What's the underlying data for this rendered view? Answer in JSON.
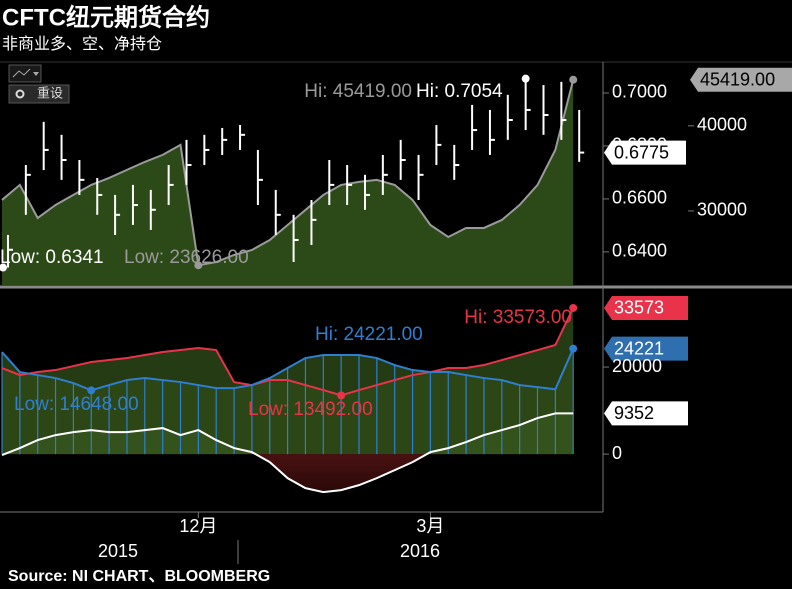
{
  "header": {
    "title": "CFTC纽元期货合约",
    "subtitle": "非商业多、空、净持仓"
  },
  "toolbar": {
    "reset": "重设"
  },
  "chart_data": [
    {
      "type": "ohlc",
      "ylim": [
        0.6275,
        0.7117
      ],
      "yticks": [
        {
          "value": 0.64,
          "label": "0.6400"
        },
        {
          "value": 0.66,
          "label": "0.6600"
        },
        {
          "value": 0.68,
          "label": "0.6800"
        },
        {
          "value": 0.7,
          "label": "0.7000"
        }
      ],
      "y2lim": [
        21300,
        47500
      ],
      "y2ticks": [
        30000,
        40000
      ],
      "series": [
        {
          "color": "#ffffff",
          "hi_label": "Hi: 0.7054",
          "low_label": "Low: 0.6341",
          "high": [
            0.6464,
            0.6728,
            0.6891,
            0.6842,
            0.6747,
            0.6679,
            0.6615,
            0.6653,
            0.6634,
            0.6728,
            0.6823,
            0.6842,
            0.6868,
            0.6879,
            0.6785,
            0.6634,
            0.654,
            0.6596,
            0.6747,
            0.6728,
            0.6691,
            0.6766,
            0.6823,
            0.6766,
            0.6879,
            0.6804,
            0.6955,
            0.6936,
            0.6993,
            0.7054,
            0.703,
            0.7042,
            0.6936
          ],
          "low": [
            0.6341,
            0.654,
            0.6709,
            0.6672,
            0.6615,
            0.654,
            0.6464,
            0.6502,
            0.6483,
            0.6577,
            0.6653,
            0.6728,
            0.6766,
            0.6785,
            0.6577,
            0.6464,
            0.6362,
            0.6426,
            0.6577,
            0.6577,
            0.6559,
            0.6615,
            0.6672,
            0.6596,
            0.6728,
            0.6672,
            0.6785,
            0.6766,
            0.6823,
            0.686,
            0.6842,
            0.6823,
            0.674
          ],
          "close": [
            0.6408,
            0.6691,
            0.6785,
            0.6747,
            0.6672,
            0.6615,
            0.654,
            0.6577,
            0.6559,
            0.6653,
            0.6728,
            0.6785,
            0.6823,
            0.6842,
            0.6672,
            0.654,
            0.6445,
            0.6521,
            0.6653,
            0.6653,
            0.6615,
            0.6691,
            0.6747,
            0.6691,
            0.6804,
            0.6728,
            0.686,
            0.6823,
            0.6898,
            0.6936,
            0.6917,
            0.6898,
            0.6775
          ]
        },
        {
          "color": "#9a9a9a",
          "fill": "#2b4a17",
          "axis": "y2",
          "hi_label": "Hi: 45419.00",
          "low_label": "Low: 23626.00",
          "last_label": "45419.00",
          "values": [
            31294,
            33059,
            29176,
            30706,
            31882,
            33059,
            33882,
            34824,
            35765,
            36588,
            37765,
            23626,
            24000,
            24824,
            25412,
            26588,
            28353,
            30118,
            31882,
            33059,
            33412,
            33647,
            33059,
            31294,
            28353,
            26941,
            28000,
            28000,
            28941,
            30706,
            33059,
            37176,
            45419
          ]
        }
      ]
    },
    {
      "type": "line",
      "categories": [
        null,
        null,
        null,
        null,
        null,
        null,
        null,
        null,
        null,
        null,
        null,
        "12月",
        null,
        null,
        null,
        null,
        null,
        null,
        null,
        null,
        null,
        null,
        null,
        null,
        "3月",
        null,
        null,
        null,
        null,
        null,
        null,
        null,
        null
      ],
      "x_groups": [
        "2015",
        "2016"
      ],
      "ylim": [
        -13300,
        37700
      ],
      "yticks": [
        0,
        20000
      ],
      "series": [
        {
          "color": "#e8334a",
          "hi_label": "Hi: 33573.00",
          "low_label": "Low: 13492.00",
          "values": [
            19770,
            18160,
            18850,
            19310,
            20230,
            21150,
            21610,
            22070,
            22760,
            23450,
            23910,
            24370,
            23910,
            16550,
            15860,
            17010,
            17010,
            15860,
            14710,
            13492,
            14710,
            15860,
            17010,
            18160,
            18850,
            19770,
            19770,
            20460,
            21610,
            22760,
            23910,
            25060,
            33573
          ]
        },
        {
          "color": "#2f7fd0",
          "hi_label": "Hi: 24221.00",
          "low_label": "Low: 14648.00",
          "values": [
            23450,
            18850,
            18160,
            17470,
            16320,
            14648,
            15860,
            17010,
            17470,
            17010,
            16550,
            15860,
            15170,
            15170,
            15860,
            17470,
            19770,
            22070,
            22760,
            22760,
            22760,
            22070,
            20460,
            19310,
            18850,
            18850,
            18160,
            17470,
            17010,
            15860,
            15400,
            14900,
            24221
          ]
        },
        {
          "color": "#ffffff",
          "values": [
            -230,
            1380,
            3220,
            4370,
            5060,
            5520,
            5060,
            5060,
            5520,
            5980,
            4370,
            5520,
            3220,
            1380,
            460,
            -1840,
            -5520,
            -7820,
            -8740,
            -8280,
            -7130,
            -5520,
            -3680,
            -1840,
            460,
            1380,
            2760,
            4370,
            5520,
            6670,
            8280,
            9352,
            9352
          ]
        }
      ]
    }
  ],
  "footer": {
    "source": "Source: NI CHART、BLOOMBERG"
  }
}
